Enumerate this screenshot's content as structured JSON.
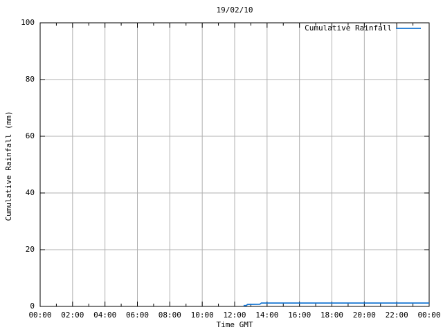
{
  "header": {
    "title": "19/02/10"
  },
  "legend": {
    "label": "Cumulative Rainfall",
    "position": "top-right"
  },
  "axes": {
    "x_title": "Time GMT",
    "y_title": "Cumulative Rainfall (mm)"
  },
  "colors": {
    "line": "#1575d2",
    "grid": "#b0b0b0",
    "axis": "#000000",
    "text": "#000000",
    "background": "#ffffff"
  },
  "chart_data": {
    "type": "line",
    "title": "19/02/10",
    "xlabel": "Time GMT",
    "ylabel": "Cumulative Rainfall (mm)",
    "grid": true,
    "legend_position": "top-right",
    "x_axis": {
      "range_hours": [
        0,
        24
      ],
      "major_tick_hours": 2,
      "minor_tick_hours": 1,
      "tick_labels": [
        "00:00",
        "02:00",
        "04:00",
        "06:00",
        "08:00",
        "10:00",
        "12:00",
        "14:00",
        "16:00",
        "18:00",
        "20:00",
        "22:00",
        "00:00"
      ]
    },
    "y_axis": {
      "range": [
        0,
        100
      ],
      "major_tick_step": 20,
      "tick_labels": [
        "0",
        "20",
        "40",
        "60",
        "80",
        "100"
      ]
    },
    "series": [
      {
        "name": "Cumulative Rainfall",
        "color": "#1575d2",
        "points_hour_mm": [
          [
            12.55,
            0.3
          ],
          [
            12.72,
            0.35
          ],
          [
            12.8,
            0.7
          ],
          [
            13.55,
            0.75
          ],
          [
            13.65,
            1.2
          ],
          [
            24.0,
            1.2
          ]
        ]
      }
    ]
  }
}
